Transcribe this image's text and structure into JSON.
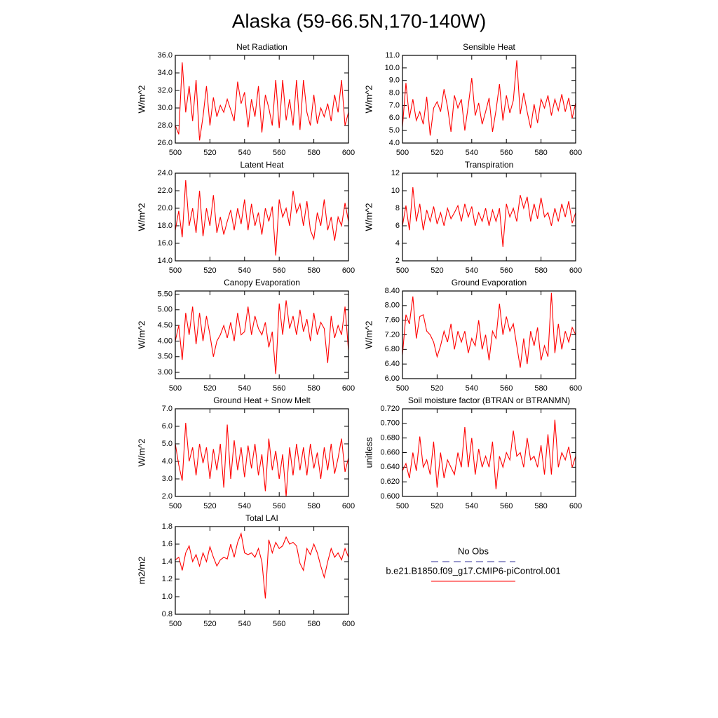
{
  "title": "Alaska (59-66.5N,170-140W)",
  "legend": [
    {
      "name": "No Obs",
      "color": "#333399",
      "dashed": true
    },
    {
      "name": "b.e21.B1850.f09_g17.CMIP6-piControl.001",
      "color": "#ff0000",
      "dashed": false
    }
  ],
  "chart_data": [
    {
      "type": "line",
      "title": "Net Radiation",
      "y_label": "W/m^2",
      "color": "#ff0000",
      "x": [
        500,
        502,
        504,
        506,
        508,
        510,
        512,
        514,
        516,
        518,
        520,
        522,
        524,
        526,
        528,
        530,
        532,
        534,
        536,
        538,
        540,
        542,
        544,
        546,
        548,
        550,
        552,
        554,
        556,
        558,
        560,
        562,
        564,
        566,
        568,
        570,
        572,
        574,
        576,
        578,
        580,
        582,
        584,
        586,
        588,
        590,
        592,
        594,
        596,
        598,
        600
      ],
      "values": [
        28.0,
        27.0,
        35.2,
        29.5,
        32.5,
        28.5,
        33.2,
        26.3,
        29.0,
        32.5,
        28.0,
        31.2,
        29.0,
        30.3,
        29.5,
        31.0,
        29.8,
        28.5,
        33.0,
        30.5,
        31.8,
        27.8,
        31.0,
        29.0,
        32.5,
        27.2,
        31.5,
        30.0,
        28.0,
        33.2,
        27.7,
        33.2,
        28.6,
        31.0,
        28.0,
        33.2,
        27.5,
        33.2,
        29.5,
        28.0,
        31.5,
        28.2,
        30.0,
        29.0,
        30.5,
        28.5,
        31.5,
        29.5,
        33.2,
        28.0,
        29.5
      ],
      "xlim": [
        500,
        600
      ],
      "xticks": [
        500,
        520,
        540,
        560,
        580,
        600
      ],
      "ylim": [
        26,
        36
      ],
      "yticks": [
        {
          "value": 26,
          "label": "26.0"
        },
        {
          "value": 28,
          "label": "28.0"
        },
        {
          "value": 30,
          "label": "30.0"
        },
        {
          "value": 32,
          "label": "32.0"
        },
        {
          "value": 34,
          "label": "34.0"
        },
        {
          "value": 36,
          "label": "36.0"
        }
      ]
    },
    {
      "type": "line",
      "title": "Sensible Heat",
      "y_label": "W/m^2",
      "color": "#ff0000",
      "x": [
        500,
        502,
        504,
        506,
        508,
        510,
        512,
        514,
        516,
        518,
        520,
        522,
        524,
        526,
        528,
        530,
        532,
        534,
        536,
        538,
        540,
        542,
        544,
        546,
        548,
        550,
        552,
        554,
        556,
        558,
        560,
        562,
        564,
        566,
        568,
        570,
        572,
        574,
        576,
        578,
        580,
        582,
        584,
        586,
        588,
        590,
        592,
        594,
        596,
        598,
        600
      ],
      "values": [
        5.3,
        8.8,
        6.0,
        7.5,
        5.8,
        6.5,
        5.5,
        7.7,
        4.6,
        6.8,
        7.3,
        6.5,
        8.3,
        6.9,
        4.9,
        7.8,
        6.8,
        7.5,
        5.0,
        7.0,
        9.2,
        6.2,
        7.2,
        5.5,
        6.5,
        7.6,
        4.9,
        6.6,
        8.7,
        5.8,
        7.8,
        6.4,
        7.4,
        10.6,
        6.3,
        8.0,
        6.5,
        5.2,
        7.1,
        5.6,
        7.5,
        6.8,
        7.8,
        6.2,
        7.5,
        6.6,
        7.9,
        6.5,
        7.6,
        6.0,
        7.2
      ],
      "xlim": [
        500,
        600
      ],
      "xticks": [
        500,
        520,
        540,
        560,
        580,
        600
      ],
      "ylim": [
        4,
        11
      ],
      "yticks": [
        {
          "value": 4,
          "label": "4.0"
        },
        {
          "value": 5,
          "label": "5.0"
        },
        {
          "value": 6,
          "label": "6.0"
        },
        {
          "value": 7,
          "label": "7.0"
        },
        {
          "value": 8,
          "label": "8.0"
        },
        {
          "value": 9,
          "label": "9.0"
        },
        {
          "value": 10,
          "label": "10.0"
        },
        {
          "value": 11,
          "label": "11.0"
        }
      ]
    },
    {
      "type": "line",
      "title": "Latent Heat",
      "y_label": "W/m^2",
      "color": "#ff0000",
      "x": [
        500,
        502,
        504,
        506,
        508,
        510,
        512,
        514,
        516,
        518,
        520,
        522,
        524,
        526,
        528,
        530,
        532,
        534,
        536,
        538,
        540,
        542,
        544,
        546,
        548,
        550,
        552,
        554,
        556,
        558,
        560,
        562,
        564,
        566,
        568,
        570,
        572,
        574,
        576,
        578,
        580,
        582,
        584,
        586,
        588,
        590,
        592,
        594,
        596,
        598,
        600
      ],
      "values": [
        17.5,
        19.7,
        16.7,
        23.2,
        18.0,
        20.0,
        17.2,
        22.0,
        16.8,
        20.0,
        18.0,
        21.5,
        17.2,
        19.0,
        17.0,
        18.5,
        19.8,
        17.5,
        20.0,
        18.2,
        21.0,
        17.5,
        20.5,
        18.0,
        19.5,
        17.0,
        20.0,
        18.5,
        20.2,
        14.6,
        21.0,
        19.0,
        20.0,
        18.0,
        22.0,
        19.5,
        20.5,
        18.0,
        20.8,
        17.5,
        16.5,
        19.5,
        18.0,
        21.0,
        17.5,
        19.0,
        16.3,
        19.0,
        18.0,
        20.6,
        18.5
      ],
      "xlim": [
        500,
        600
      ],
      "xticks": [
        500,
        520,
        540,
        560,
        580,
        600
      ],
      "ylim": [
        14,
        24
      ],
      "yticks": [
        {
          "value": 14,
          "label": "14.0"
        },
        {
          "value": 16,
          "label": "16.0"
        },
        {
          "value": 18,
          "label": "18.0"
        },
        {
          "value": 20,
          "label": "20.0"
        },
        {
          "value": 22,
          "label": "22.0"
        },
        {
          "value": 24,
          "label": "24.0"
        }
      ]
    },
    {
      "type": "line",
      "title": "Transpiration",
      "y_label": "W/m^2",
      "color": "#ff0000",
      "x": [
        500,
        502,
        504,
        506,
        508,
        510,
        512,
        514,
        516,
        518,
        520,
        522,
        524,
        526,
        528,
        530,
        532,
        534,
        536,
        538,
        540,
        542,
        544,
        546,
        548,
        550,
        552,
        554,
        556,
        558,
        560,
        562,
        564,
        566,
        568,
        570,
        572,
        574,
        576,
        578,
        580,
        582,
        584,
        586,
        588,
        590,
        592,
        594,
        596,
        598,
        600
      ],
      "values": [
        6.0,
        8.3,
        5.5,
        10.4,
        6.5,
        8.5,
        5.5,
        7.8,
        6.5,
        8.2,
        6.2,
        7.5,
        6.0,
        8.0,
        6.8,
        7.5,
        8.3,
        6.5,
        8.5,
        7.0,
        8.2,
        6.0,
        7.5,
        6.5,
        8.0,
        6.0,
        7.8,
        6.5,
        8.0,
        3.6,
        8.5,
        7.0,
        8.0,
        6.5,
        9.5,
        8.0,
        9.3,
        6.5,
        8.5,
        6.8,
        9.2,
        7.0,
        7.5,
        6.0,
        8.0,
        6.5,
        8.5,
        7.0,
        8.8,
        6.3,
        7.5
      ],
      "xlim": [
        500,
        600
      ],
      "xticks": [
        500,
        520,
        540,
        560,
        580,
        600
      ],
      "ylim": [
        2,
        12
      ],
      "yticks": [
        2,
        4,
        6,
        8,
        10,
        12
      ]
    },
    {
      "type": "line",
      "title": "Canopy Evaporation",
      "y_label": "W/m^2",
      "color": "#ff0000",
      "x": [
        500,
        502,
        504,
        506,
        508,
        510,
        512,
        514,
        516,
        518,
        520,
        522,
        524,
        526,
        528,
        530,
        532,
        534,
        536,
        538,
        540,
        542,
        544,
        546,
        548,
        550,
        552,
        554,
        556,
        558,
        560,
        562,
        564,
        566,
        568,
        570,
        572,
        574,
        576,
        578,
        580,
        582,
        584,
        586,
        588,
        590,
        592,
        594,
        596,
        598,
        600
      ],
      "values": [
        4.0,
        4.5,
        3.4,
        4.9,
        4.2,
        5.1,
        3.9,
        4.9,
        4.0,
        4.8,
        4.2,
        3.5,
        4.0,
        4.2,
        4.5,
        4.1,
        4.6,
        4.0,
        4.9,
        4.2,
        4.3,
        5.1,
        4.2,
        4.8,
        4.4,
        4.2,
        4.6,
        3.8,
        4.3,
        2.95,
        5.2,
        4.2,
        5.3,
        4.4,
        4.8,
        4.2,
        5.0,
        4.3,
        4.7,
        4.0,
        4.9,
        4.2,
        4.6,
        4.4,
        3.3,
        4.8,
        4.1,
        4.5,
        4.2,
        5.1,
        3.7
      ],
      "xlim": [
        500,
        600
      ],
      "xticks": [
        500,
        520,
        540,
        560,
        580,
        600
      ],
      "ylim": [
        2.8,
        5.6
      ],
      "yticks": [
        {
          "value": 3,
          "label": "3.00"
        },
        {
          "value": 3.5,
          "label": "3.50"
        },
        {
          "value": 4,
          "label": "4.00"
        },
        {
          "value": 4.5,
          "label": "4.50"
        },
        {
          "value": 5,
          "label": "5.00"
        },
        {
          "value": 5.5,
          "label": "5.50"
        }
      ]
    },
    {
      "type": "line",
      "title": "Ground Evaporation",
      "y_label": "W/m^2",
      "color": "#ff0000",
      "x": [
        500,
        502,
        504,
        506,
        508,
        510,
        512,
        514,
        516,
        518,
        520,
        522,
        524,
        526,
        528,
        530,
        532,
        534,
        536,
        538,
        540,
        542,
        544,
        546,
        548,
        550,
        552,
        554,
        556,
        558,
        560,
        562,
        564,
        566,
        568,
        570,
        572,
        574,
        576,
        578,
        580,
        582,
        584,
        586,
        588,
        590,
        592,
        594,
        596,
        598,
        600
      ],
      "values": [
        6.65,
        7.75,
        7.5,
        8.25,
        7.1,
        7.7,
        7.75,
        7.3,
        7.2,
        7.0,
        6.6,
        6.9,
        7.3,
        7.0,
        7.5,
        6.8,
        7.3,
        7.0,
        7.3,
        6.7,
        7.1,
        6.9,
        7.6,
        6.8,
        7.2,
        6.5,
        7.3,
        7.1,
        8.05,
        7.2,
        7.7,
        7.3,
        7.5,
        6.9,
        6.3,
        7.1,
        6.4,
        7.3,
        6.9,
        7.4,
        6.5,
        6.9,
        6.6,
        8.35,
        6.7,
        7.5,
        6.8,
        7.3,
        7.0,
        7.4,
        7.2
      ],
      "xlim": [
        500,
        600
      ],
      "xticks": [
        500,
        520,
        540,
        560,
        580,
        600
      ],
      "ylim": [
        6.0,
        8.4
      ],
      "yticks": [
        {
          "value": 6.0,
          "label": "6.00"
        },
        {
          "value": 6.4,
          "label": "6.40"
        },
        {
          "value": 6.8,
          "label": "6.80"
        },
        {
          "value": 7.2,
          "label": "7.20"
        },
        {
          "value": 7.6,
          "label": "7.60"
        },
        {
          "value": 8.0,
          "label": "8.00"
        },
        {
          "value": 8.4,
          "label": "8.40"
        }
      ]
    },
    {
      "type": "line",
      "title": "Ground Heat + Snow Melt",
      "y_label": "W/m^2",
      "color": "#ff0000",
      "x": [
        500,
        502,
        504,
        506,
        508,
        510,
        512,
        514,
        516,
        518,
        520,
        522,
        524,
        526,
        528,
        530,
        532,
        534,
        536,
        538,
        540,
        542,
        544,
        546,
        548,
        550,
        552,
        554,
        556,
        558,
        560,
        562,
        564,
        566,
        568,
        570,
        572,
        574,
        576,
        578,
        580,
        582,
        584,
        586,
        588,
        590,
        592,
        594,
        596,
        598,
        600
      ],
      "values": [
        5.0,
        3.8,
        2.9,
        6.2,
        4.0,
        4.8,
        3.2,
        5.0,
        3.9,
        4.8,
        3.0,
        4.7,
        3.5,
        5.0,
        2.5,
        6.1,
        3.0,
        5.2,
        3.5,
        4.8,
        3.1,
        4.9,
        3.6,
        5.0,
        3.2,
        4.4,
        2.3,
        5.3,
        3.5,
        4.6,
        3.0,
        4.4,
        2.0,
        4.8,
        3.2,
        5.0,
        3.5,
        4.8,
        3.2,
        5.0,
        3.6,
        4.5,
        3.0,
        4.8,
        3.5,
        5.0,
        3.3,
        4.2,
        5.3,
        3.4,
        4.2
      ],
      "xlim": [
        500,
        600
      ],
      "xticks": [
        500,
        520,
        540,
        560,
        580,
        600
      ],
      "ylim": [
        2,
        7
      ],
      "yticks": [
        {
          "value": 2,
          "label": "2.0"
        },
        {
          "value": 3,
          "label": "3.0"
        },
        {
          "value": 4,
          "label": "4.0"
        },
        {
          "value": 5,
          "label": "5.0"
        },
        {
          "value": 6,
          "label": "6.0"
        },
        {
          "value": 7,
          "label": "7.0"
        }
      ]
    },
    {
      "type": "line",
      "title": "Soil moisture factor (BTRAN or BTRANMN)",
      "y_label": "unitless",
      "color": "#ff0000",
      "x": [
        500,
        502,
        504,
        506,
        508,
        510,
        512,
        514,
        516,
        518,
        520,
        522,
        524,
        526,
        528,
        530,
        532,
        534,
        536,
        538,
        540,
        542,
        544,
        546,
        548,
        550,
        552,
        554,
        556,
        558,
        560,
        562,
        564,
        566,
        568,
        570,
        572,
        574,
        576,
        578,
        580,
        582,
        584,
        586,
        588,
        590,
        592,
        594,
        596,
        598,
        600
      ],
      "values": [
        0.635,
        0.645,
        0.625,
        0.66,
        0.635,
        0.682,
        0.64,
        0.65,
        0.63,
        0.675,
        0.612,
        0.66,
        0.625,
        0.65,
        0.64,
        0.63,
        0.66,
        0.64,
        0.695,
        0.64,
        0.68,
        0.63,
        0.665,
        0.64,
        0.655,
        0.64,
        0.675,
        0.61,
        0.655,
        0.64,
        0.66,
        0.65,
        0.69,
        0.655,
        0.66,
        0.64,
        0.68,
        0.65,
        0.655,
        0.64,
        0.67,
        0.63,
        0.685,
        0.63,
        0.705,
        0.64,
        0.66,
        0.65,
        0.668,
        0.64,
        0.655
      ],
      "xlim": [
        500,
        600
      ],
      "xticks": [
        500,
        520,
        540,
        560,
        580,
        600
      ],
      "ylim": [
        0.6,
        0.72
      ],
      "yticks": [
        {
          "value": 0.6,
          "label": "0.600"
        },
        {
          "value": 0.62,
          "label": "0.620"
        },
        {
          "value": 0.64,
          "label": "0.640"
        },
        {
          "value": 0.66,
          "label": "0.660"
        },
        {
          "value": 0.68,
          "label": "0.680"
        },
        {
          "value": 0.7,
          "label": "0.700"
        },
        {
          "value": 0.72,
          "label": "0.720"
        }
      ]
    },
    {
      "type": "line",
      "title": "Total LAI",
      "y_label": "m2/m2",
      "color": "#ff0000",
      "x": [
        500,
        502,
        504,
        506,
        508,
        510,
        512,
        514,
        516,
        518,
        520,
        522,
        524,
        526,
        528,
        530,
        532,
        534,
        536,
        538,
        540,
        542,
        544,
        546,
        548,
        550,
        552,
        554,
        556,
        558,
        560,
        562,
        564,
        566,
        568,
        570,
        572,
        574,
        576,
        578,
        580,
        582,
        584,
        586,
        588,
        590,
        592,
        594,
        596,
        598,
        600
      ],
      "values": [
        1.42,
        1.45,
        1.3,
        1.5,
        1.58,
        1.4,
        1.48,
        1.35,
        1.5,
        1.4,
        1.57,
        1.45,
        1.35,
        1.42,
        1.45,
        1.43,
        1.6,
        1.45,
        1.62,
        1.72,
        1.5,
        1.48,
        1.5,
        1.45,
        1.55,
        1.4,
        0.98,
        1.65,
        1.5,
        1.62,
        1.55,
        1.58,
        1.68,
        1.6,
        1.62,
        1.58,
        1.38,
        1.3,
        1.55,
        1.48,
        1.6,
        1.5,
        1.35,
        1.22,
        1.4,
        1.55,
        1.45,
        1.5,
        1.42,
        1.55,
        1.45
      ],
      "xlim": [
        500,
        600
      ],
      "xticks": [
        500,
        520,
        540,
        560,
        580,
        600
      ],
      "ylim": [
        0.8,
        1.8
      ],
      "yticks": [
        {
          "value": 0.8,
          "label": "0.8"
        },
        {
          "value": 1.0,
          "label": "1.0"
        },
        {
          "value": 1.2,
          "label": "1.2"
        },
        {
          "value": 1.4,
          "label": "1.4"
        },
        {
          "value": 1.6,
          "label": "1.6"
        },
        {
          "value": 1.8,
          "label": "1.8"
        }
      ]
    }
  ]
}
